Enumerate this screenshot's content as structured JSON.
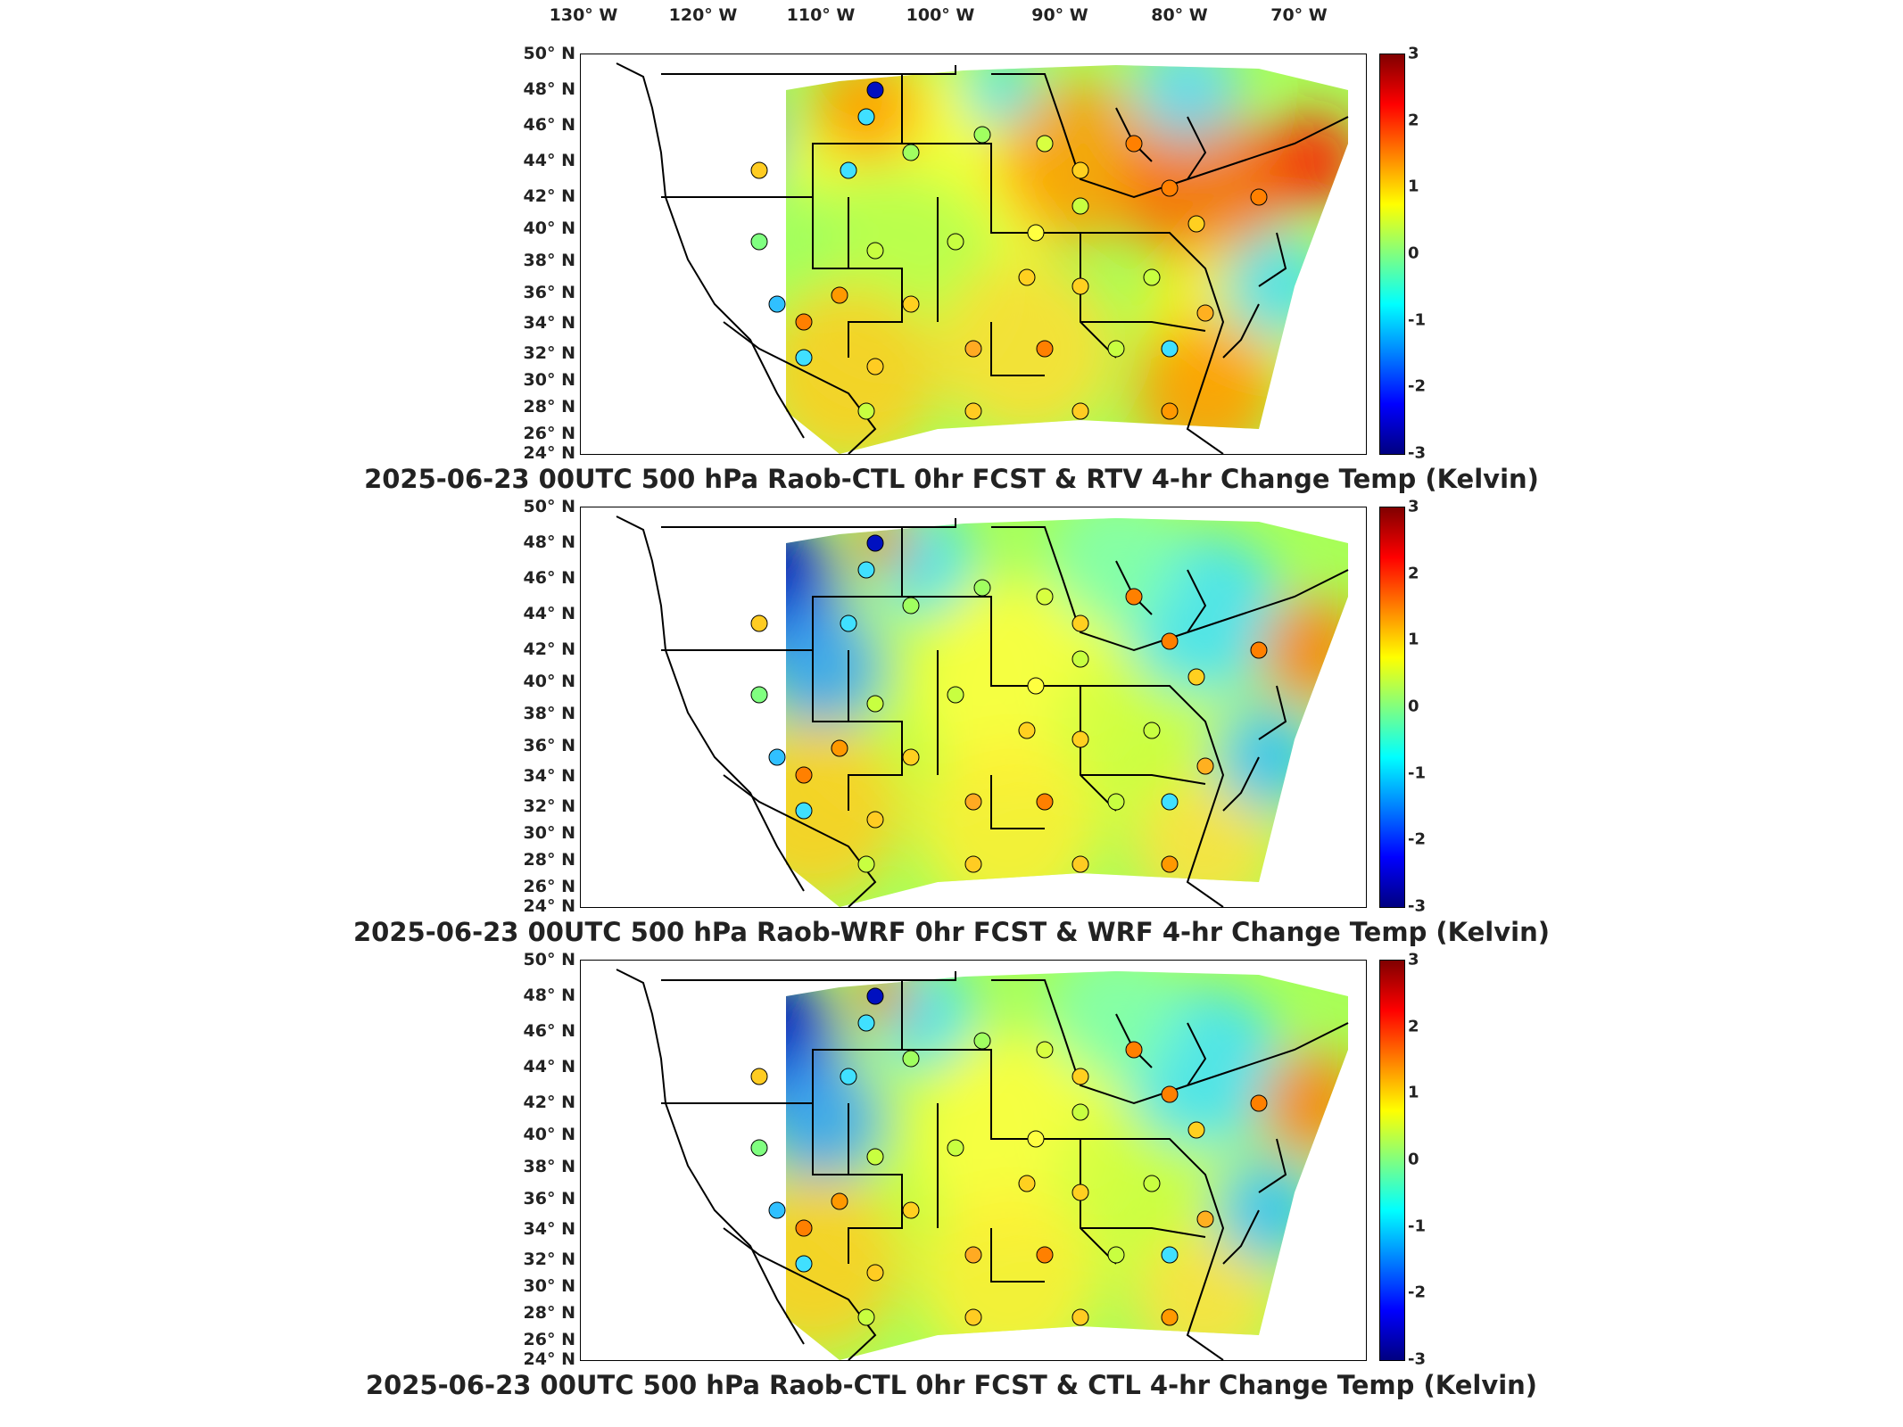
{
  "lon_labels": [
    "130° W",
    "120° W",
    "110° W",
    "100° W",
    "90° W",
    "80° W",
    "70° W"
  ],
  "lat_labels": [
    "50° N",
    "48° N",
    "46° N",
    "44° N",
    "42° N",
    "40° N",
    "38° N",
    "36° N",
    "34° N",
    "32° N",
    "30° N",
    "28° N",
    "26° N",
    "24° N"
  ],
  "colorbar": {
    "ticks": [
      "3",
      "2",
      "1",
      "0",
      "-1",
      "-2",
      "-3"
    ],
    "colors": [
      "#800000",
      "#ff0000",
      "#ff8000",
      "#ffff00",
      "#80ff80",
      "#00ffff",
      "#0080ff",
      "#0000ff",
      "#000080"
    ]
  },
  "panels": [
    {
      "title": "2025-06-23 00UTC 500 hPa Raob-CTL 0hr FCST & RTV 4-hr Change Temp (Kelvin)"
    },
    {
      "title": "2025-06-23 00UTC 500 hPa Raob-WRF 0hr FCST & WRF 4-hr Change Temp (Kelvin)"
    },
    {
      "title": "2025-06-23 00UTC 500 hPa Raob-CTL 0hr FCST & CTL 4-hr Change Temp (Kelvin)"
    }
  ]
}
